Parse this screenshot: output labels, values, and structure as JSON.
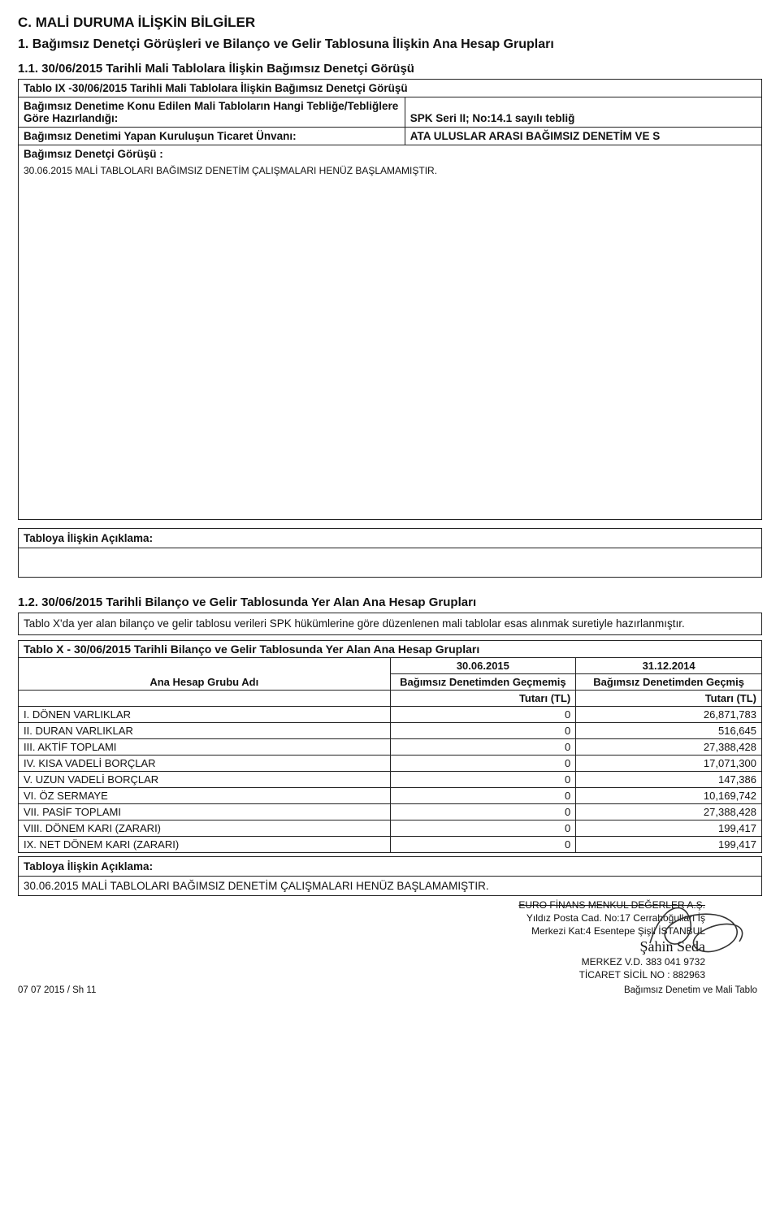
{
  "section_c_title": "C. MALİ DURUMA İLİŞKİN BİLGİLER",
  "item1_title": "1. Bağımsız Denetçi Görüşleri ve Bilanço ve Gelir Tablosuna İlişkin Ana Hesap Grupları",
  "item11_title": "1.1. 30/06/2015 Tarihli Mali Tablolara İlişkin Bağımsız Denetçi Görüşü",
  "t9": {
    "caption": "Tablo IX -30/06/2015 Tarihli Mali Tablolara İlişkin Bağımsız Denetçi Görüşü",
    "k1": "Bağımsız Denetime Konu Edilen Mali Tabloların Hangi Tebliğe/Tebliğlere Göre Hazırlandığı:",
    "v1": "SPK Seri II; No:14.1 sayılı tebliğ",
    "k2": "Bağımsız Denetimi Yapan Kuruluşun Ticaret Ünvanı:",
    "v2": "ATA ULUSLAR ARASI BAĞIMSIZ DENETİM VE S",
    "k3": "Bağımsız Denetçi Görüşü :",
    "body": "30.06.2015 MALİ TABLOLARI BAĞIMSIZ DENETİM ÇALIŞMALARI HENÜZ BAŞLAMAMIŞTIR.",
    "expl_label": "Tabloya İlişkin Açıklama:",
    "expl_body": ""
  },
  "item12_title": "1.2. 30/06/2015 Tarihli Bilanço ve Gelir Tablosunda Yer Alan Ana Hesap Grupları",
  "item12_para": "Tablo X'da yer alan bilanço ve gelir tablosu verileri SPK hükümlerine göre düzenlenen mali tablolar esas alınmak suretiyle hazırlanmıştır.",
  "tx": {
    "caption": "Tablo X - 30/06/2015 Tarihli Bilanço ve Gelir Tablosunda Yer Alan Ana Hesap Grupları",
    "col_group": "Ana Hesap Grubu Adı",
    "date1": "30.06.2015",
    "date2": "31.12.2014",
    "head1": "Bağımsız Denetimden Geçmemiş",
    "head2": "Bağımsız Denetimden Geçmiş",
    "sub": "Tutarı (TL)",
    "rows": [
      {
        "l": "I. DÖNEN VARLIKLAR",
        "a": "0",
        "b": "26,871,783"
      },
      {
        "l": "II. DURAN VARLIKLAR",
        "a": "0",
        "b": "516,645"
      },
      {
        "l": "III. AKTİF TOPLAMI",
        "a": "0",
        "b": "27,388,428"
      },
      {
        "l": "IV. KISA VADELİ BORÇLAR",
        "a": "0",
        "b": "17,071,300"
      },
      {
        "l": "V. UZUN VADELİ BORÇLAR",
        "a": "0",
        "b": "147,386"
      },
      {
        "l": "VI. ÖZ SERMAYE",
        "a": "0",
        "b": "10,169,742"
      },
      {
        "l": "VII. PASİF TOPLAMI",
        "a": "0",
        "b": "27,388,428"
      },
      {
        "l": "VIII. DÖNEM KARI (ZARARI)",
        "a": "0",
        "b": "199,417"
      },
      {
        "l": "IX. NET DÖNEM KARI (ZARARI)",
        "a": "0",
        "b": "199,417"
      }
    ],
    "expl_label": "Tabloya İlişkin Açıklama:",
    "expl_body": "30.06.2015 MALİ TABLOLARI BAĞIMSIZ DENETİM ÇALIŞMALARI HENÜZ BAŞLAMAMIŞTIR."
  },
  "stamp": {
    "l1": "EURO FİNANS MENKUL DEĞERLER A.Ş.",
    "l2": "Yıldız Posta Cad. No:17 Cerrahoğulları İş",
    "l3": "Merkezi Kat:4 Esentepe Şişli İSTANBUL",
    "sig": "Şahin Seda",
    "l4": "MERKEZ V.D. 383 041 9732",
    "l5": "TİCARET SİCİL NO : 882963"
  },
  "foot_left": "07 07 2015 / Sh 11",
  "foot_right": "Bağımsız Denetim ve Mali Tablo"
}
